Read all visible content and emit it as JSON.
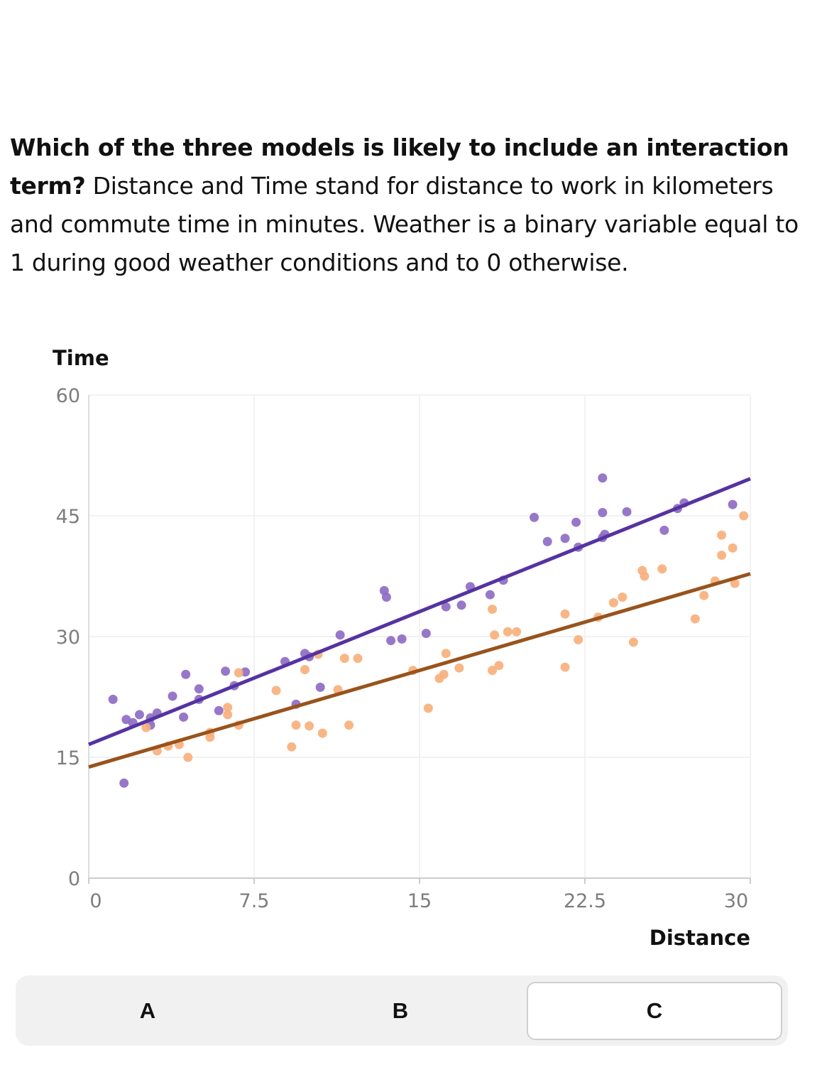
{
  "question": {
    "bold": "Which of the three models is likely to include an interaction term?",
    "rest": " Distance and Time stand for distance to work in kilometers and commute time in minutes. Weather is a binary variable equal to 1 during good weather conditions and to 0 otherwise."
  },
  "options": {
    "a": "A",
    "b": "B",
    "c": "C",
    "selected": "C"
  },
  "chart_data": {
    "type": "scatter",
    "xlabel": "Distance",
    "ylabel": "Time",
    "xlim": [
      0,
      30
    ],
    "ylim": [
      0,
      60
    ],
    "x_ticks": [
      "0",
      "7.5",
      "15",
      "22.5",
      "30"
    ],
    "y_ticks": [
      "0",
      "15",
      "30",
      "45",
      "60"
    ],
    "grid": true,
    "series": [
      {
        "color": "#8e6cc3",
        "line_color": "#5533a1",
        "line": {
          "intercept": 16.6,
          "slope": 1.1
        },
        "points": [
          [
            1.1,
            22.2
          ],
          [
            1.6,
            11.8
          ],
          [
            1.7,
            19.7
          ],
          [
            2.0,
            19.3
          ],
          [
            2.3,
            20.3
          ],
          [
            2.8,
            19.9
          ],
          [
            2.8,
            19.0
          ],
          [
            3.1,
            20.5
          ],
          [
            3.8,
            22.6
          ],
          [
            4.3,
            20.0
          ],
          [
            4.4,
            25.3
          ],
          [
            5.0,
            23.5
          ],
          [
            5.0,
            22.2
          ],
          [
            5.9,
            20.8
          ],
          [
            6.2,
            25.7
          ],
          [
            6.6,
            23.9
          ],
          [
            7.1,
            25.6
          ],
          [
            8.9,
            26.9
          ],
          [
            9.4,
            21.6
          ],
          [
            9.8,
            27.9
          ],
          [
            10.0,
            27.5
          ],
          [
            10.5,
            23.7
          ],
          [
            11.4,
            30.2
          ],
          [
            13.4,
            35.7
          ],
          [
            13.5,
            34.9
          ],
          [
            13.7,
            29.5
          ],
          [
            14.2,
            29.7
          ],
          [
            15.3,
            30.4
          ],
          [
            16.2,
            33.7
          ],
          [
            16.9,
            33.9
          ],
          [
            17.3,
            36.2
          ],
          [
            18.2,
            35.2
          ],
          [
            18.8,
            37.0
          ],
          [
            20.2,
            44.8
          ],
          [
            20.8,
            41.8
          ],
          [
            21.6,
            42.2
          ],
          [
            22.1,
            44.2
          ],
          [
            22.2,
            41.1
          ],
          [
            23.3,
            49.7
          ],
          [
            23.3,
            45.4
          ],
          [
            23.4,
            42.7
          ],
          [
            23.3,
            42.3
          ],
          [
            24.4,
            45.5
          ],
          [
            26.1,
            43.2
          ],
          [
            26.7,
            45.9
          ],
          [
            27.0,
            46.6
          ],
          [
            29.2,
            46.4
          ]
        ]
      },
      {
        "color": "#f7b07d",
        "line_color": "#99531c",
        "line": {
          "intercept": 13.8,
          "slope": 0.8
        },
        "points": [
          [
            2.6,
            18.7
          ],
          [
            3.1,
            15.8
          ],
          [
            3.6,
            16.4
          ],
          [
            4.1,
            16.6
          ],
          [
            4.5,
            15.0
          ],
          [
            5.5,
            18.1
          ],
          [
            5.5,
            17.5
          ],
          [
            6.3,
            20.3
          ],
          [
            6.3,
            21.2
          ],
          [
            6.8,
            19.0
          ],
          [
            6.8,
            25.5
          ],
          [
            8.5,
            23.3
          ],
          [
            9.2,
            16.3
          ],
          [
            9.4,
            19.0
          ],
          [
            9.8,
            25.9
          ],
          [
            10.0,
            18.9
          ],
          [
            10.4,
            27.8
          ],
          [
            10.6,
            18.0
          ],
          [
            11.3,
            23.4
          ],
          [
            11.6,
            27.3
          ],
          [
            11.8,
            19.0
          ],
          [
            12.2,
            27.3
          ],
          [
            14.7,
            25.8
          ],
          [
            15.4,
            21.1
          ],
          [
            15.9,
            24.8
          ],
          [
            16.1,
            25.3
          ],
          [
            16.2,
            27.9
          ],
          [
            16.8,
            26.1
          ],
          [
            18.3,
            33.4
          ],
          [
            18.3,
            25.8
          ],
          [
            18.4,
            30.2
          ],
          [
            18.6,
            26.4
          ],
          [
            19.0,
            30.6
          ],
          [
            19.4,
            30.6
          ],
          [
            21.6,
            32.8
          ],
          [
            21.6,
            26.2
          ],
          [
            22.2,
            29.6
          ],
          [
            23.1,
            32.4
          ],
          [
            23.8,
            34.2
          ],
          [
            24.2,
            34.9
          ],
          [
            24.7,
            29.3
          ],
          [
            25.1,
            38.2
          ],
          [
            25.2,
            37.5
          ],
          [
            26.0,
            38.4
          ],
          [
            27.5,
            32.2
          ],
          [
            27.9,
            35.1
          ],
          [
            28.4,
            36.9
          ],
          [
            28.7,
            40.1
          ],
          [
            28.7,
            42.6
          ],
          [
            29.2,
            41.0
          ],
          [
            29.3,
            36.6
          ],
          [
            29.7,
            45.0
          ]
        ]
      }
    ]
  }
}
